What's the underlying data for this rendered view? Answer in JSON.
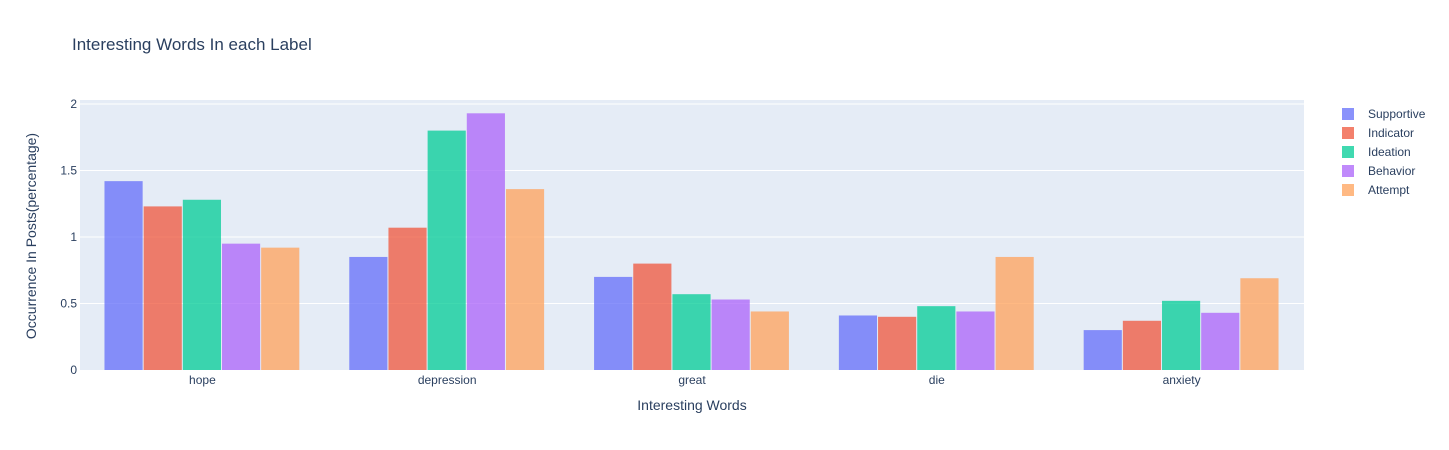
{
  "chart_data": {
    "type": "bar",
    "title": "Interesting Words In each Label",
    "xlabel": "Interesting Words",
    "ylabel": "Occurrence In Posts(percentage)",
    "categories": [
      "hope",
      "depression",
      "great",
      "die",
      "anxiety"
    ],
    "ylim": [
      0,
      2.0
    ],
    "yticks": [
      0,
      0.5,
      1,
      1.5,
      2
    ],
    "ytick_labels": [
      "0",
      "0.5",
      "1",
      "1.5",
      "2"
    ],
    "grid": true,
    "legend_position": "top-right",
    "series": [
      {
        "name": "Supportive",
        "color": "#636efa",
        "values": [
          1.42,
          0.85,
          0.7,
          0.41,
          0.3
        ]
      },
      {
        "name": "Indicator",
        "color": "#ef553b",
        "values": [
          1.23,
          1.07,
          0.8,
          0.4,
          0.37
        ]
      },
      {
        "name": "Ideation",
        "color": "#00cc96",
        "values": [
          1.28,
          1.8,
          0.57,
          0.48,
          0.52
        ]
      },
      {
        "name": "Behavior",
        "color": "#ab63fa",
        "values": [
          0.95,
          1.93,
          0.53,
          0.44,
          0.43
        ]
      },
      {
        "name": "Attempt",
        "color": "#ffa15a",
        "values": [
          0.92,
          1.36,
          0.44,
          0.85,
          0.69
        ]
      }
    ],
    "plot_background": "#e5ecf6",
    "bar_opacity": 0.75
  }
}
